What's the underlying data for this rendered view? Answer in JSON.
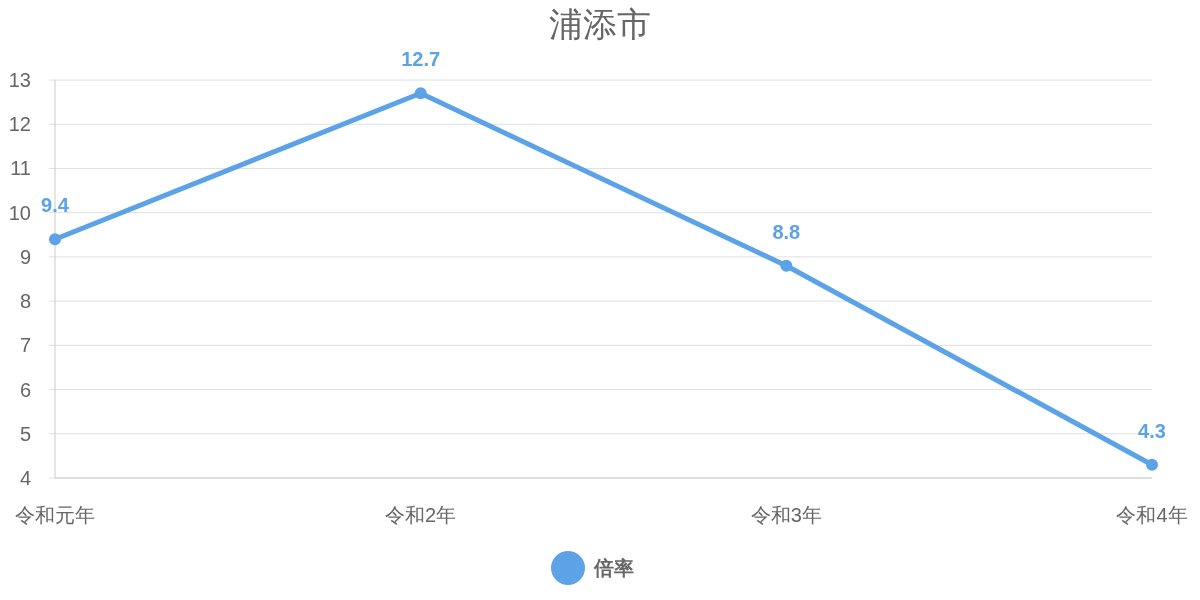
{
  "chart_data": {
    "type": "line",
    "title": "浦添市",
    "categories": [
      "令和元年",
      "令和2年",
      "令和3年",
      "令和4年"
    ],
    "series": [
      {
        "name": "倍率",
        "color": "#5ba3e6",
        "values": [
          9.4,
          12.7,
          8.8,
          4.3
        ]
      }
    ],
    "ylim": [
      4,
      13
    ],
    "yticks": [
      4,
      5,
      6,
      7,
      8,
      9,
      10,
      11,
      12,
      13
    ],
    "grid": "y",
    "data_labels": true,
    "marker": "circle",
    "legend": "bottom"
  }
}
